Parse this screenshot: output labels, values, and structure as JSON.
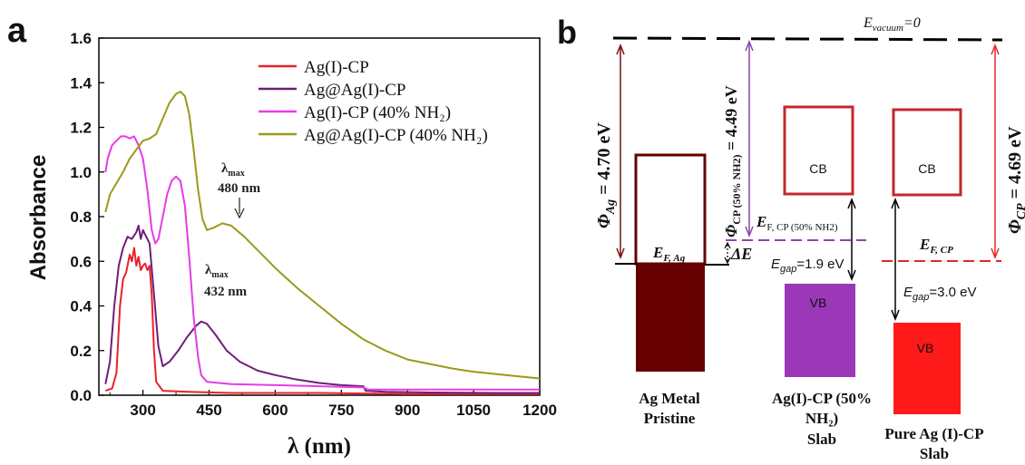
{
  "panel_a": {
    "label": "a"
  },
  "panel_b": {
    "label": "b"
  },
  "chart_data": {
    "type": "line",
    "title": "",
    "xlabel": "λ (nm)",
    "ylabel": "Absorbance",
    "xlim": [
      200,
      1200
    ],
    "ylim": [
      0,
      1.6
    ],
    "xticks": [
      300,
      450,
      600,
      750,
      900,
      1050,
      1200
    ],
    "yticks": [
      0.0,
      0.2,
      0.4,
      0.6,
      0.8,
      1.0,
      1.2,
      1.4,
      1.6
    ],
    "grid": false,
    "legend_position": "top-right",
    "series": [
      {
        "name": "Ag(I)-CP",
        "color": "#e8232a",
        "points": [
          [
            215,
            0.02
          ],
          [
            230,
            0.03
          ],
          [
            240,
            0.1
          ],
          [
            248,
            0.4
          ],
          [
            255,
            0.52
          ],
          [
            262,
            0.55
          ],
          [
            270,
            0.63
          ],
          [
            275,
            0.6
          ],
          [
            280,
            0.66
          ],
          [
            285,
            0.58
          ],
          [
            290,
            0.62
          ],
          [
            295,
            0.56
          ],
          [
            300,
            0.58
          ],
          [
            305,
            0.59
          ],
          [
            310,
            0.56
          ],
          [
            315,
            0.58
          ],
          [
            320,
            0.45
          ],
          [
            325,
            0.2
          ],
          [
            330,
            0.06
          ],
          [
            345,
            0.02
          ],
          [
            400,
            0.015
          ],
          [
            500,
            0.01
          ],
          [
            700,
            0.01
          ],
          [
            900,
            0.005
          ],
          [
            1200,
            0.005
          ]
        ]
      },
      {
        "name": "Ag@Ag(I)-CP",
        "color": "#6e1f78",
        "points": [
          [
            215,
            0.05
          ],
          [
            225,
            0.15
          ],
          [
            235,
            0.4
          ],
          [
            245,
            0.58
          ],
          [
            255,
            0.66
          ],
          [
            265,
            0.71
          ],
          [
            275,
            0.7
          ],
          [
            285,
            0.73
          ],
          [
            290,
            0.76
          ],
          [
            295,
            0.7
          ],
          [
            300,
            0.74
          ],
          [
            305,
            0.72
          ],
          [
            315,
            0.68
          ],
          [
            325,
            0.45
          ],
          [
            335,
            0.22
          ],
          [
            345,
            0.13
          ],
          [
            360,
            0.15
          ],
          [
            380,
            0.2
          ],
          [
            400,
            0.26
          ],
          [
            420,
            0.31
          ],
          [
            432,
            0.33
          ],
          [
            445,
            0.32
          ],
          [
            465,
            0.27
          ],
          [
            490,
            0.2
          ],
          [
            520,
            0.15
          ],
          [
            560,
            0.11
          ],
          [
            600,
            0.09
          ],
          [
            650,
            0.07
          ],
          [
            700,
            0.055
          ],
          [
            750,
            0.045
          ],
          [
            800,
            0.04
          ],
          [
            805,
            0.02
          ],
          [
            850,
            0.015
          ],
          [
            950,
            0.012
          ],
          [
            1100,
            0.01
          ],
          [
            1200,
            0.01
          ]
        ]
      },
      {
        "name": "Ag(I)-CP (40% NH₂)",
        "color": "#e63ce6",
        "points": [
          [
            215,
            1.0
          ],
          [
            220,
            1.06
          ],
          [
            230,
            1.12
          ],
          [
            240,
            1.14
          ],
          [
            250,
            1.16
          ],
          [
            260,
            1.16
          ],
          [
            270,
            1.15
          ],
          [
            280,
            1.16
          ],
          [
            290,
            1.12
          ],
          [
            300,
            1.06
          ],
          [
            310,
            0.92
          ],
          [
            320,
            0.74
          ],
          [
            328,
            0.68
          ],
          [
            335,
            0.7
          ],
          [
            345,
            0.8
          ],
          [
            355,
            0.9
          ],
          [
            365,
            0.96
          ],
          [
            375,
            0.98
          ],
          [
            385,
            0.96
          ],
          [
            395,
            0.85
          ],
          [
            405,
            0.62
          ],
          [
            415,
            0.35
          ],
          [
            425,
            0.17
          ],
          [
            432,
            0.09
          ],
          [
            445,
            0.06
          ],
          [
            500,
            0.05
          ],
          [
            600,
            0.045
          ],
          [
            700,
            0.04
          ],
          [
            800,
            0.035
          ],
          [
            810,
            0.025
          ],
          [
            900,
            0.025
          ],
          [
            1000,
            0.025
          ],
          [
            1100,
            0.025
          ],
          [
            1200,
            0.025
          ]
        ]
      },
      {
        "name": "Ag@Ag(I)-CP (40% NH₂)",
        "color": "#9a9a1c",
        "points": [
          [
            215,
            0.82
          ],
          [
            225,
            0.9
          ],
          [
            240,
            0.95
          ],
          [
            255,
            1.0
          ],
          [
            270,
            1.06
          ],
          [
            285,
            1.1
          ],
          [
            300,
            1.14
          ],
          [
            315,
            1.15
          ],
          [
            330,
            1.17
          ],
          [
            345,
            1.24
          ],
          [
            360,
            1.31
          ],
          [
            375,
            1.35
          ],
          [
            385,
            1.36
          ],
          [
            395,
            1.34
          ],
          [
            405,
            1.26
          ],
          [
            415,
            1.1
          ],
          [
            425,
            0.92
          ],
          [
            435,
            0.79
          ],
          [
            445,
            0.74
          ],
          [
            460,
            0.75
          ],
          [
            480,
            0.77
          ],
          [
            500,
            0.76
          ],
          [
            530,
            0.71
          ],
          [
            560,
            0.65
          ],
          [
            600,
            0.57
          ],
          [
            650,
            0.48
          ],
          [
            700,
            0.4
          ],
          [
            750,
            0.32
          ],
          [
            800,
            0.25
          ],
          [
            850,
            0.2
          ],
          [
            900,
            0.16
          ],
          [
            950,
            0.14
          ],
          [
            1000,
            0.12
          ],
          [
            1050,
            0.105
          ],
          [
            1100,
            0.095
          ],
          [
            1150,
            0.085
          ],
          [
            1200,
            0.075
          ]
        ]
      }
    ],
    "annotations": [
      {
        "text": "λmax 480 nm",
        "x": 480,
        "y": 0.77
      },
      {
        "text": "λmax 432 nm",
        "x": 432,
        "y": 0.33
      }
    ]
  },
  "diagram": {
    "vacuum_label": "E_vacuum=0",
    "phi_ag": {
      "sym": "Φ",
      "sub": "Ag",
      "value": " = 4.70 eV"
    },
    "phi_cp50": {
      "sym": "Φ",
      "sub": "CP (50% NH2)",
      "value": " = 4.49 eV"
    },
    "phi_cp": {
      "sym": "Φ",
      "sub": "CP",
      "value": " = 4.69 eV"
    },
    "ef_ag": {
      "sym": "E",
      "sub": "F, Ag"
    },
    "ef_cp50": {
      "sym": "E",
      "sub": "F, CP (50% NH2)"
    },
    "ef_cp": {
      "sym": "E",
      "sub": "F, CP"
    },
    "delta_e": "ΔE",
    "egap_50": {
      "sym": "E",
      "sub": "gap",
      "value": "=1.9 eV"
    },
    "egap_pure": {
      "sym": "E",
      "sub": "gap",
      "value": "=3.0 eV"
    },
    "cb_label": "CB",
    "vb_label": "VB",
    "captions": {
      "ag_metal": [
        "Ag Metal",
        "Pristine"
      ],
      "cp50": [
        "Ag(I)-CP (50%",
        "NH₂)",
        "Slab"
      ],
      "pure": [
        "Pure Ag (I)-CP",
        "Slab"
      ]
    },
    "colors": {
      "ag_metal": "#660000",
      "cp50_band": "#9a38b8",
      "pure_vb": "#ff1a1a",
      "box_red": "#c0282c",
      "purple": "#8e44ad",
      "dark_red": "#7a0e0e",
      "red": "#e32828"
    }
  }
}
